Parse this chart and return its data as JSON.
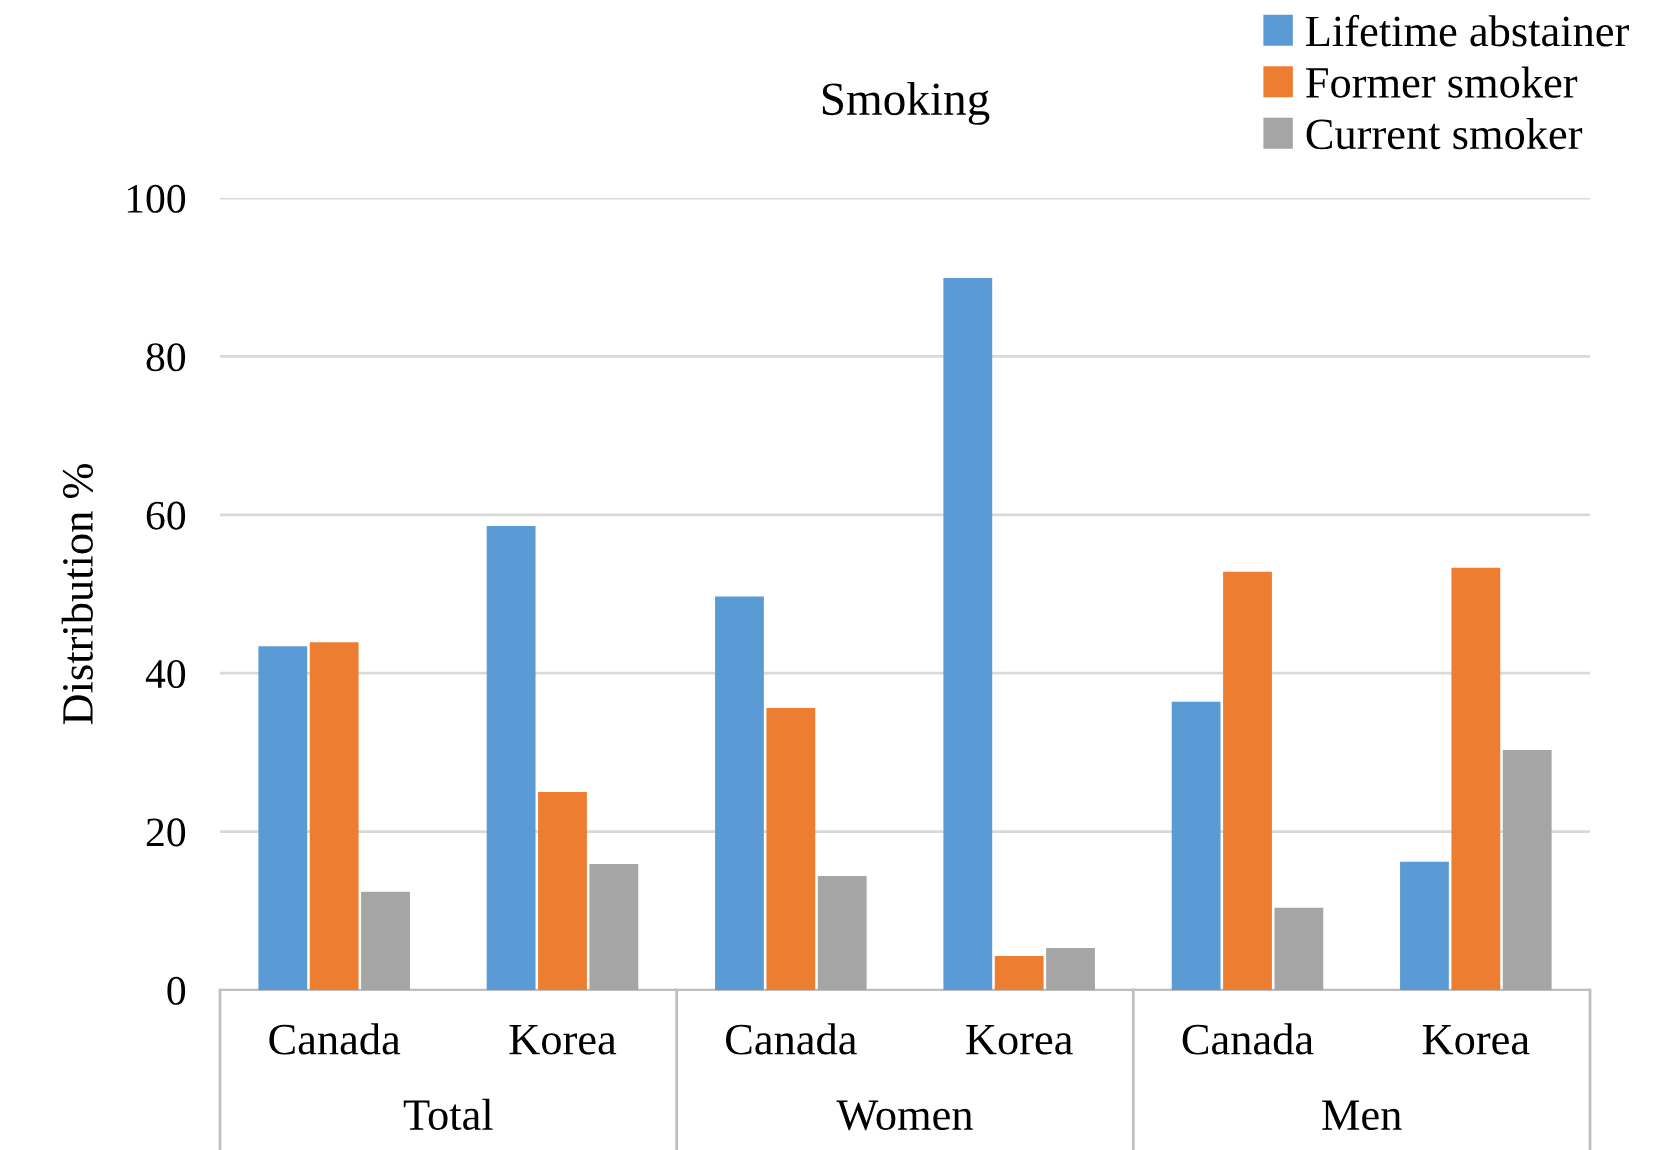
{
  "chart_data": {
    "type": "bar",
    "title": "Smoking",
    "ylabel": "Distribution %",
    "categories": [
      "Canada",
      "Korea",
      "Canada",
      "Korea",
      "Canada",
      "Korea"
    ],
    "annotations": [
      "Total",
      "Women",
      "Men"
    ],
    "series": [
      {
        "name": "Lifetime abstainer",
        "color": "#5b9bd5",
        "values": [
          43.4,
          58.6,
          49.7,
          89.9,
          36.4,
          16.2
        ]
      },
      {
        "name": "Former smoker",
        "color": "#ed7d31",
        "values": [
          43.9,
          25.0,
          35.6,
          4.3,
          52.8,
          53.3
        ]
      },
      {
        "name": "Current smoker",
        "color": "#a5a5a5",
        "values": [
          12.4,
          15.9,
          14.4,
          5.3,
          10.4,
          30.3
        ]
      }
    ],
    "ylim": [
      0,
      100
    ],
    "yticks": [
      0,
      20,
      40,
      60,
      80,
      100
    ],
    "grid": "y",
    "legend": "top right"
  }
}
